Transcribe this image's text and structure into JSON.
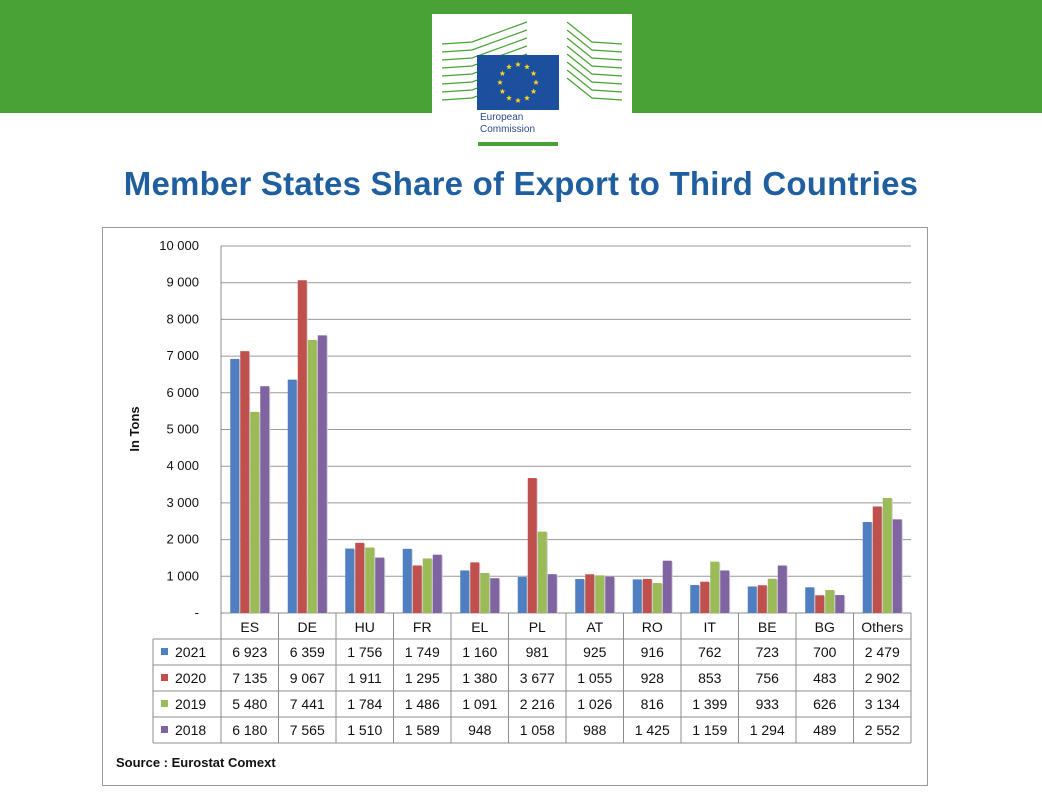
{
  "header": {
    "logo_line1": "European",
    "logo_line2": "Commission",
    "title": "Member States Share of Export to Third Countries"
  },
  "colors": {
    "banner": "#48a235",
    "title": "#1f5f9f",
    "series": [
      "#4f7ec1",
      "#c0504d",
      "#9bbb59",
      "#8064a2"
    ]
  },
  "chart_data": {
    "type": "bar",
    "ylabel": "In Tons",
    "ylim": [
      0,
      10000
    ],
    "yticks": [
      0,
      1000,
      2000,
      3000,
      4000,
      5000,
      6000,
      7000,
      8000,
      9000,
      10000
    ],
    "ytick_labels": [
      "-",
      "1 000",
      "2 000",
      "3 000",
      "4 000",
      "5 000",
      "6 000",
      "7 000",
      "8 000",
      "9 000",
      "10 000"
    ],
    "grid": true,
    "legend_placement": "data table below axis",
    "categories": [
      "ES",
      "DE",
      "HU",
      "FR",
      "EL",
      "PL",
      "AT",
      "RO",
      "IT",
      "BE",
      "BG",
      "Others"
    ],
    "series": [
      {
        "name": "2021",
        "values": [
          6923,
          6359,
          1756,
          1749,
          1160,
          981,
          925,
          916,
          762,
          723,
          700,
          2479
        ],
        "labels": [
          "6 923",
          "6 359",
          "1 756",
          "1 749",
          "1 160",
          "981",
          "925",
          "916",
          "762",
          "723",
          "700",
          "2 479"
        ]
      },
      {
        "name": "2020",
        "values": [
          7135,
          9067,
          1911,
          1295,
          1380,
          3677,
          1055,
          928,
          853,
          756,
          483,
          2902
        ],
        "labels": [
          "7 135",
          "9 067",
          "1 911",
          "1 295",
          "1 380",
          "3 677",
          "1 055",
          "928",
          "853",
          "756",
          "483",
          "2 902"
        ]
      },
      {
        "name": "2019",
        "values": [
          5480,
          7441,
          1784,
          1486,
          1091,
          2216,
          1026,
          816,
          1399,
          933,
          626,
          3134
        ],
        "labels": [
          "5 480",
          "7 441",
          "1 784",
          "1 486",
          "1 091",
          "2 216",
          "1 026",
          "816",
          "1 399",
          "933",
          "626",
          "3 134"
        ]
      },
      {
        "name": "2018",
        "values": [
          6180,
          7565,
          1510,
          1589,
          948,
          1058,
          988,
          1425,
          1159,
          1294,
          489,
          2552
        ],
        "labels": [
          "6 180",
          "7 565",
          "1 510",
          "1 589",
          "948",
          "1 058",
          "988",
          "1 425",
          "1 159",
          "1 294",
          "489",
          "2 552"
        ]
      }
    ],
    "source": "Source : Eurostat Comext"
  }
}
